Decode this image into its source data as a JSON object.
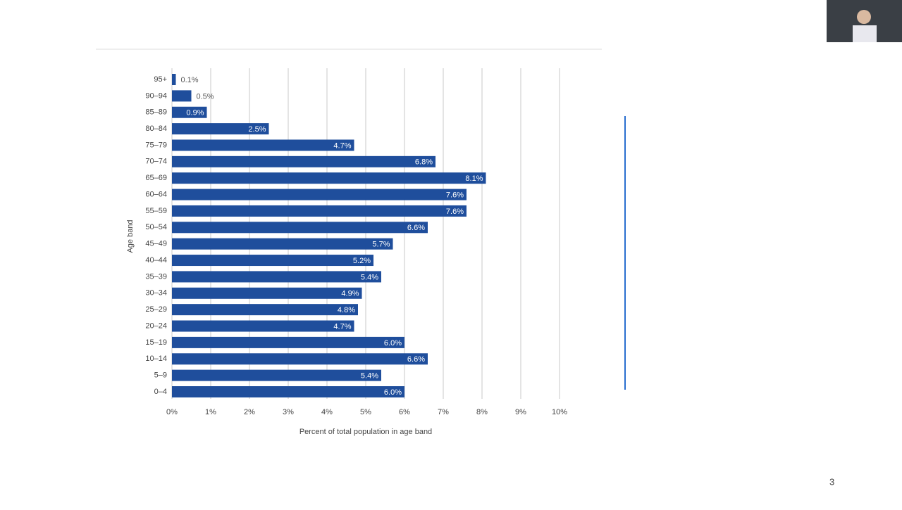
{
  "chart_data": {
    "type": "bar",
    "orientation": "horizontal",
    "x_label": "Percent of total population in age band",
    "y_label": "Age band",
    "categories": [
      "95+",
      "90–94",
      "85–89",
      "80–84",
      "75–79",
      "70–74",
      "65–69",
      "60–64",
      "55–59",
      "50–54",
      "45–49",
      "40–44",
      "35–39",
      "30–34",
      "25–29",
      "20–24",
      "15–19",
      "10–14",
      "5–9",
      "0–4"
    ],
    "values": [
      0.1,
      0.5,
      0.9,
      2.5,
      4.7,
      6.8,
      8.1,
      7.6,
      7.6,
      6.6,
      5.7,
      5.2,
      5.4,
      4.9,
      4.8,
      4.7,
      6.0,
      6.6,
      5.4,
      6.0
    ],
    "value_labels": [
      "0.1%",
      "0.5%",
      "0.9%",
      "2.5%",
      "4.7%",
      "6.8%",
      "8.1%",
      "7.6%",
      "7.6%",
      "6.6%",
      "5.7%",
      "5.2%",
      "5.4%",
      "4.9%",
      "4.8%",
      "4.7%",
      "6.0%",
      "6.6%",
      "5.4%",
      "6.0%"
    ],
    "color": "#1f4e9c",
    "xlim": [
      0,
      10
    ],
    "xticks": [
      {
        "value": 0,
        "label": "0%"
      },
      {
        "value": 1,
        "label": "1%"
      },
      {
        "value": 2,
        "label": "2%"
      },
      {
        "value": 3,
        "label": "3%"
      },
      {
        "value": 4,
        "label": "4%"
      },
      {
        "value": 5,
        "label": "5%"
      },
      {
        "value": 6,
        "label": "6%"
      },
      {
        "value": 7,
        "label": "7%"
      },
      {
        "value": 8,
        "label": "8%"
      },
      {
        "value": 9,
        "label": "9%"
      },
      {
        "value": 10,
        "label": "10%"
      }
    ],
    "grid": true
  },
  "page_number": "3"
}
